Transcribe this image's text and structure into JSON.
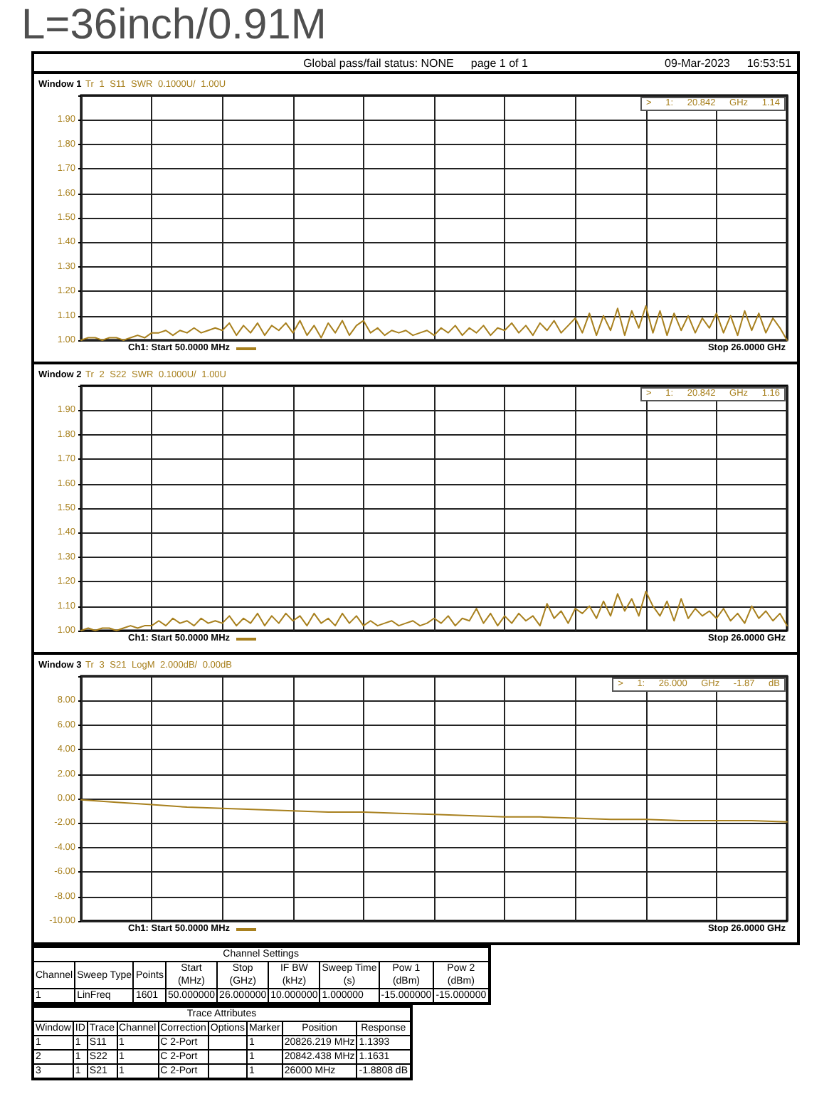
{
  "chart_data": [
    {
      "type": "other",
      "title": "L=36inch/0.91M",
      "annotations": [
        "Global pass/fail status: NONE",
        "page 1 of 1",
        "09-Mar-2023",
        "16:53:51"
      ]
    },
    {
      "type": "line",
      "title": "Tr 1 S11 SWR 0.1000U/ 1.00U",
      "annotations": [
        "Window 1",
        "> 1: 20.842 GHz 1.14",
        "Ch1: Start 50.0000 MHz",
        "Stop 26.0000 GHz"
      ],
      "categories": [
        null,
        null,
        null,
        null,
        null,
        null,
        null,
        null,
        null,
        null,
        null,
        null,
        null,
        null,
        null,
        null,
        null,
        null,
        null,
        null,
        null,
        null,
        null,
        null,
        null,
        null,
        null,
        null,
        null,
        null,
        null,
        null,
        null,
        null,
        null,
        null,
        null,
        null,
        null,
        null,
        null,
        null,
        null,
        null,
        null,
        null,
        null,
        null,
        null,
        null,
        null,
        null,
        null,
        null,
        null,
        null,
        null,
        null,
        null,
        null,
        null,
        null,
        null,
        null,
        null,
        null,
        null,
        null,
        null,
        null,
        null,
        null,
        null,
        null,
        null,
        null,
        null,
        null,
        null,
        null,
        null,
        null,
        null,
        null,
        null,
        null,
        null,
        null,
        null,
        null,
        null,
        null,
        null,
        null,
        null,
        null,
        null,
        null,
        null,
        null,
        null
      ],
      "values": [
        1.0,
        1.01,
        1.01,
        1.0,
        1.01,
        1.01,
        1.0,
        1.01,
        1.02,
        1.01,
        1.03,
        1.03,
        1.04,
        1.02,
        1.04,
        1.03,
        1.05,
        1.03,
        1.04,
        1.05,
        1.04,
        1.07,
        1.02,
        1.06,
        1.03,
        1.07,
        1.02,
        1.06,
        1.04,
        1.07,
        1.03,
        1.08,
        1.02,
        1.06,
        1.01,
        1.07,
        1.03,
        1.08,
        1.02,
        1.06,
        1.08,
        1.03,
        1.05,
        1.02,
        1.04,
        1.03,
        1.04,
        1.02,
        1.03,
        1.04,
        1.02,
        1.05,
        1.03,
        1.06,
        1.02,
        1.05,
        1.03,
        1.06,
        1.02,
        1.05,
        1.04,
        1.07,
        1.03,
        1.06,
        1.02,
        1.07,
        1.04,
        1.08,
        1.03,
        1.06,
        1.09,
        1.03,
        1.11,
        1.02,
        1.1,
        1.04,
        1.13,
        1.02,
        1.12,
        1.05,
        1.14,
        1.03,
        1.12,
        1.02,
        1.11,
        1.04,
        1.1,
        1.03,
        1.09,
        1.05,
        1.11,
        1.03,
        1.1,
        1.02,
        1.12,
        1.04,
        1.11,
        1.03,
        1.09,
        1.05,
        1.0
      ],
      "color": "#a8801e",
      "ylim": [
        1,
        2
      ],
      "yticks": [
        {
          "value": 1,
          "label": "1.00"
        },
        {
          "value": 1.1,
          "label": "1.10"
        },
        {
          "value": 1.2,
          "label": "1.20"
        },
        {
          "value": 1.3,
          "label": "1.30"
        },
        {
          "value": 1.4,
          "label": "1.40"
        },
        {
          "value": 1.5,
          "label": "1.50"
        },
        {
          "value": 1.6,
          "label": "1.60"
        },
        {
          "value": 1.7,
          "label": "1.70"
        },
        {
          "value": 1.8,
          "label": "1.80"
        },
        {
          "value": 1.9,
          "label": "1.90"
        },
        {
          "value": 2,
          "label": null
        }
      ],
      "grid": true,
      "tick_labels": "y"
    },
    {
      "type": "line",
      "title": "Tr 2 S22 SWR 0.1000U/ 1.00U",
      "annotations": [
        "Window 2",
        "> 1: 20.842 GHz 1.16",
        "Ch1: Start 50.0000 MHz",
        "Stop 26.0000 GHz"
      ],
      "categories": [
        null,
        null,
        null,
        null,
        null,
        null,
        null,
        null,
        null,
        null,
        null,
        null,
        null,
        null,
        null,
        null,
        null,
        null,
        null,
        null,
        null,
        null,
        null,
        null,
        null,
        null,
        null,
        null,
        null,
        null,
        null,
        null,
        null,
        null,
        null,
        null,
        null,
        null,
        null,
        null,
        null,
        null,
        null,
        null,
        null,
        null,
        null,
        null,
        null,
        null,
        null,
        null,
        null,
        null,
        null,
        null,
        null,
        null,
        null,
        null,
        null,
        null,
        null,
        null,
        null,
        null,
        null,
        null,
        null,
        null,
        null,
        null,
        null,
        null,
        null,
        null,
        null,
        null,
        null,
        null,
        null,
        null,
        null,
        null,
        null,
        null,
        null,
        null,
        null,
        null,
        null,
        null,
        null,
        null,
        null,
        null,
        null,
        null,
        null,
        null,
        null
      ],
      "values": [
        1.0,
        1.01,
        1.0,
        1.01,
        1.01,
        1.0,
        1.01,
        1.02,
        1.01,
        1.02,
        1.02,
        1.04,
        1.02,
        1.05,
        1.03,
        1.04,
        1.02,
        1.05,
        1.03,
        1.04,
        1.03,
        1.06,
        1.02,
        1.05,
        1.03,
        1.07,
        1.02,
        1.06,
        1.03,
        1.07,
        1.04,
        1.06,
        1.02,
        1.07,
        1.03,
        1.05,
        1.02,
        1.07,
        1.03,
        1.06,
        1.02,
        1.04,
        1.02,
        1.03,
        1.04,
        1.02,
        1.03,
        1.04,
        1.02,
        1.03,
        1.05,
        1.03,
        1.06,
        1.02,
        1.05,
        1.04,
        1.09,
        1.03,
        1.07,
        1.02,
        1.06,
        1.03,
        1.07,
        1.04,
        1.06,
        1.02,
        1.11,
        1.05,
        1.08,
        1.03,
        1.09,
        1.07,
        1.1,
        1.05,
        1.12,
        1.06,
        1.15,
        1.08,
        1.13,
        1.06,
        1.16,
        1.1,
        1.06,
        1.12,
        1.04,
        1.13,
        1.05,
        1.09,
        1.06,
        1.08,
        1.05,
        1.09,
        1.04,
        1.07,
        1.03,
        1.1,
        1.05,
        1.08,
        1.04,
        1.07,
        1.02
      ],
      "color": "#a8801e",
      "ylim": [
        1,
        2
      ],
      "yticks": [
        {
          "value": 1,
          "label": "1.00"
        },
        {
          "value": 1.1,
          "label": "1.10"
        },
        {
          "value": 1.2,
          "label": "1.20"
        },
        {
          "value": 1.3,
          "label": "1.30"
        },
        {
          "value": 1.4,
          "label": "1.40"
        },
        {
          "value": 1.5,
          "label": "1.50"
        },
        {
          "value": 1.6,
          "label": "1.60"
        },
        {
          "value": 1.7,
          "label": "1.70"
        },
        {
          "value": 1.8,
          "label": "1.80"
        },
        {
          "value": 1.9,
          "label": "1.90"
        },
        {
          "value": 2,
          "label": null
        }
      ],
      "grid": true,
      "tick_labels": "y"
    },
    {
      "type": "line",
      "title": "Tr 3 S21 LogM 2.000dB/ 0.00dB",
      "annotations": [
        "Window 3",
        "> 1: 26.000 GHz -1.87 dB",
        "Ch1: Start 50.0000 MHz",
        "Stop 26.0000 GHz"
      ],
      "categories": [
        null,
        null,
        null,
        null,
        null,
        null,
        null,
        null,
        null,
        null,
        null,
        null,
        null,
        null,
        null,
        null,
        null,
        null,
        null,
        null,
        null
      ],
      "values": [
        -0.1,
        -0.3,
        -0.5,
        -0.7,
        -0.8,
        -0.9,
        -1.0,
        -1.1,
        -1.1,
        -1.2,
        -1.3,
        -1.4,
        -1.5,
        -1.5,
        -1.6,
        -1.7,
        -1.7,
        -1.8,
        -1.8,
        -1.8,
        -1.9
      ],
      "color": "#a8801e",
      "ylim": [
        -10,
        10
      ],
      "yticks": [
        {
          "value": -10,
          "label": "-10.00"
        },
        {
          "value": -8,
          "label": "-8.00"
        },
        {
          "value": -6,
          "label": "-6.00"
        },
        {
          "value": -4,
          "label": "-4.00"
        },
        {
          "value": -2,
          "label": "-2.00"
        },
        {
          "value": 0,
          "label": "0.00"
        },
        {
          "value": 2,
          "label": "2.00"
        },
        {
          "value": 4,
          "label": "4.00"
        },
        {
          "value": 6,
          "label": "6.00"
        },
        {
          "value": 8,
          "label": "8.00"
        },
        {
          "value": 10,
          "label": null
        }
      ],
      "grid": true,
      "tick_labels": "y"
    },
    {
      "type": "other",
      "title": "Channel Settings",
      "categories": [
        "Channel",
        "Sweep Type",
        "Points",
        "Start\n(MHz)",
        "Stop\n(GHz)",
        "IF BW\n(kHz)",
        "Sweep Time\n(s)",
        "Pow 1\n(dBm)",
        "Pow 2\n(dBm)"
      ],
      "cell_labels": [
        [
          "1",
          "LinFreq",
          "1601",
          "50.000000",
          "26.000000",
          "10.000000",
          "1.000000",
          "-15.000000",
          "-15.000000"
        ]
      ]
    },
    {
      "type": "other",
      "title": "Trace Attributes",
      "categories": [
        "Window",
        "ID",
        "Trace",
        "Channel",
        "Correction",
        "Options",
        "Marker",
        "Position",
        "Response"
      ],
      "cell_labels": [
        [
          "1",
          "1",
          "S11",
          "1",
          "C 2-Port",
          null,
          "1",
          "20826.219 MHz",
          "1.1393"
        ],
        [
          "2",
          "1",
          "S22",
          "1",
          "C 2-Port",
          null,
          "1",
          "20842.438 MHz",
          "1.1631"
        ],
        [
          "3",
          "1",
          "S21",
          "1",
          "C 2-Port",
          null,
          "1",
          "26000 MHz",
          "-1.8808 dB"
        ]
      ]
    }
  ]
}
